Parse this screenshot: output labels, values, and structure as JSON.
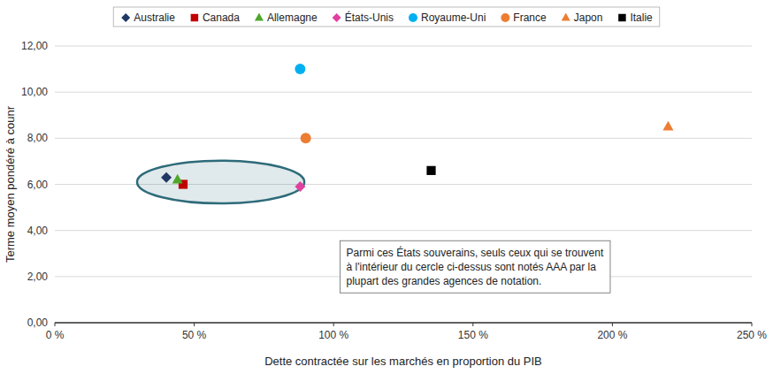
{
  "chart_data": {
    "type": "scatter",
    "xlabel": "Dette contractée sur les marchés en proportion du PIB",
    "ylabel": "Terme moyen pondéré à counr",
    "series": [
      {
        "name": "Australie",
        "color": "#1f3864",
        "marker": "diamond",
        "x": [
          0.4
        ],
        "values": [
          6.3
        ]
      },
      {
        "name": "Canada",
        "color": "#c00000",
        "marker": "square",
        "x": [
          0.46
        ],
        "values": [
          6.0
        ]
      },
      {
        "name": "Allemagne",
        "color": "#4ea72a",
        "marker": "triangle",
        "x": [
          0.44
        ],
        "values": [
          6.2
        ]
      },
      {
        "name": "États-Unis",
        "color": "#e040a0",
        "marker": "diamond",
        "x": [
          0.88
        ],
        "values": [
          5.9
        ]
      },
      {
        "name": "Royaume-Uni",
        "color": "#00b0f0",
        "marker": "circle",
        "x": [
          0.88
        ],
        "values": [
          11.0
        ]
      },
      {
        "name": "France",
        "color": "#ed7d31",
        "marker": "circle",
        "x": [
          0.9
        ],
        "values": [
          8.0
        ]
      },
      {
        "name": "Japon",
        "color": "#ed7d31",
        "marker": "triangle",
        "x": [
          2.2
        ],
        "values": [
          8.5
        ]
      },
      {
        "name": "Italie",
        "color": "#000000",
        "marker": "square",
        "x": [
          1.35
        ],
        "values": [
          6.6
        ]
      }
    ],
    "xlim": [
      0.0,
      2.5
    ],
    "ylim": [
      0.0,
      12.0
    ],
    "xticks": [
      {
        "value": 0.0,
        "label": "0 %"
      },
      {
        "value": 0.5,
        "label": "50 %"
      },
      {
        "value": 1.0,
        "label": "100 %"
      },
      {
        "value": 1.5,
        "label": "150 %"
      },
      {
        "value": 2.0,
        "label": "200 %"
      },
      {
        "value": 2.5,
        "label": "250 %"
      }
    ],
    "yticks": [
      {
        "value": 0.0,
        "label": "0,00"
      },
      {
        "value": 2.0,
        "label": "2,00"
      },
      {
        "value": 4.0,
        "label": "4,00"
      },
      {
        "value": 6.0,
        "label": "6,00"
      },
      {
        "value": 8.0,
        "label": "8,00"
      },
      {
        "value": 10.0,
        "label": "10,00"
      },
      {
        "value": 12.0,
        "label": "12,00"
      }
    ],
    "ellipse": {
      "x": 0.595,
      "y": 6.1,
      "width": 0.6,
      "height": 1.85,
      "color": "#2e6b7a"
    },
    "annotation": "Parmi ces États souverains, seuls ceux qui se trouvent\nà l'intérieur du cercle ci-dessus sont notés AAA par la\nplupart des grandes agences de notation.",
    "grid": "y",
    "legend": "top"
  }
}
